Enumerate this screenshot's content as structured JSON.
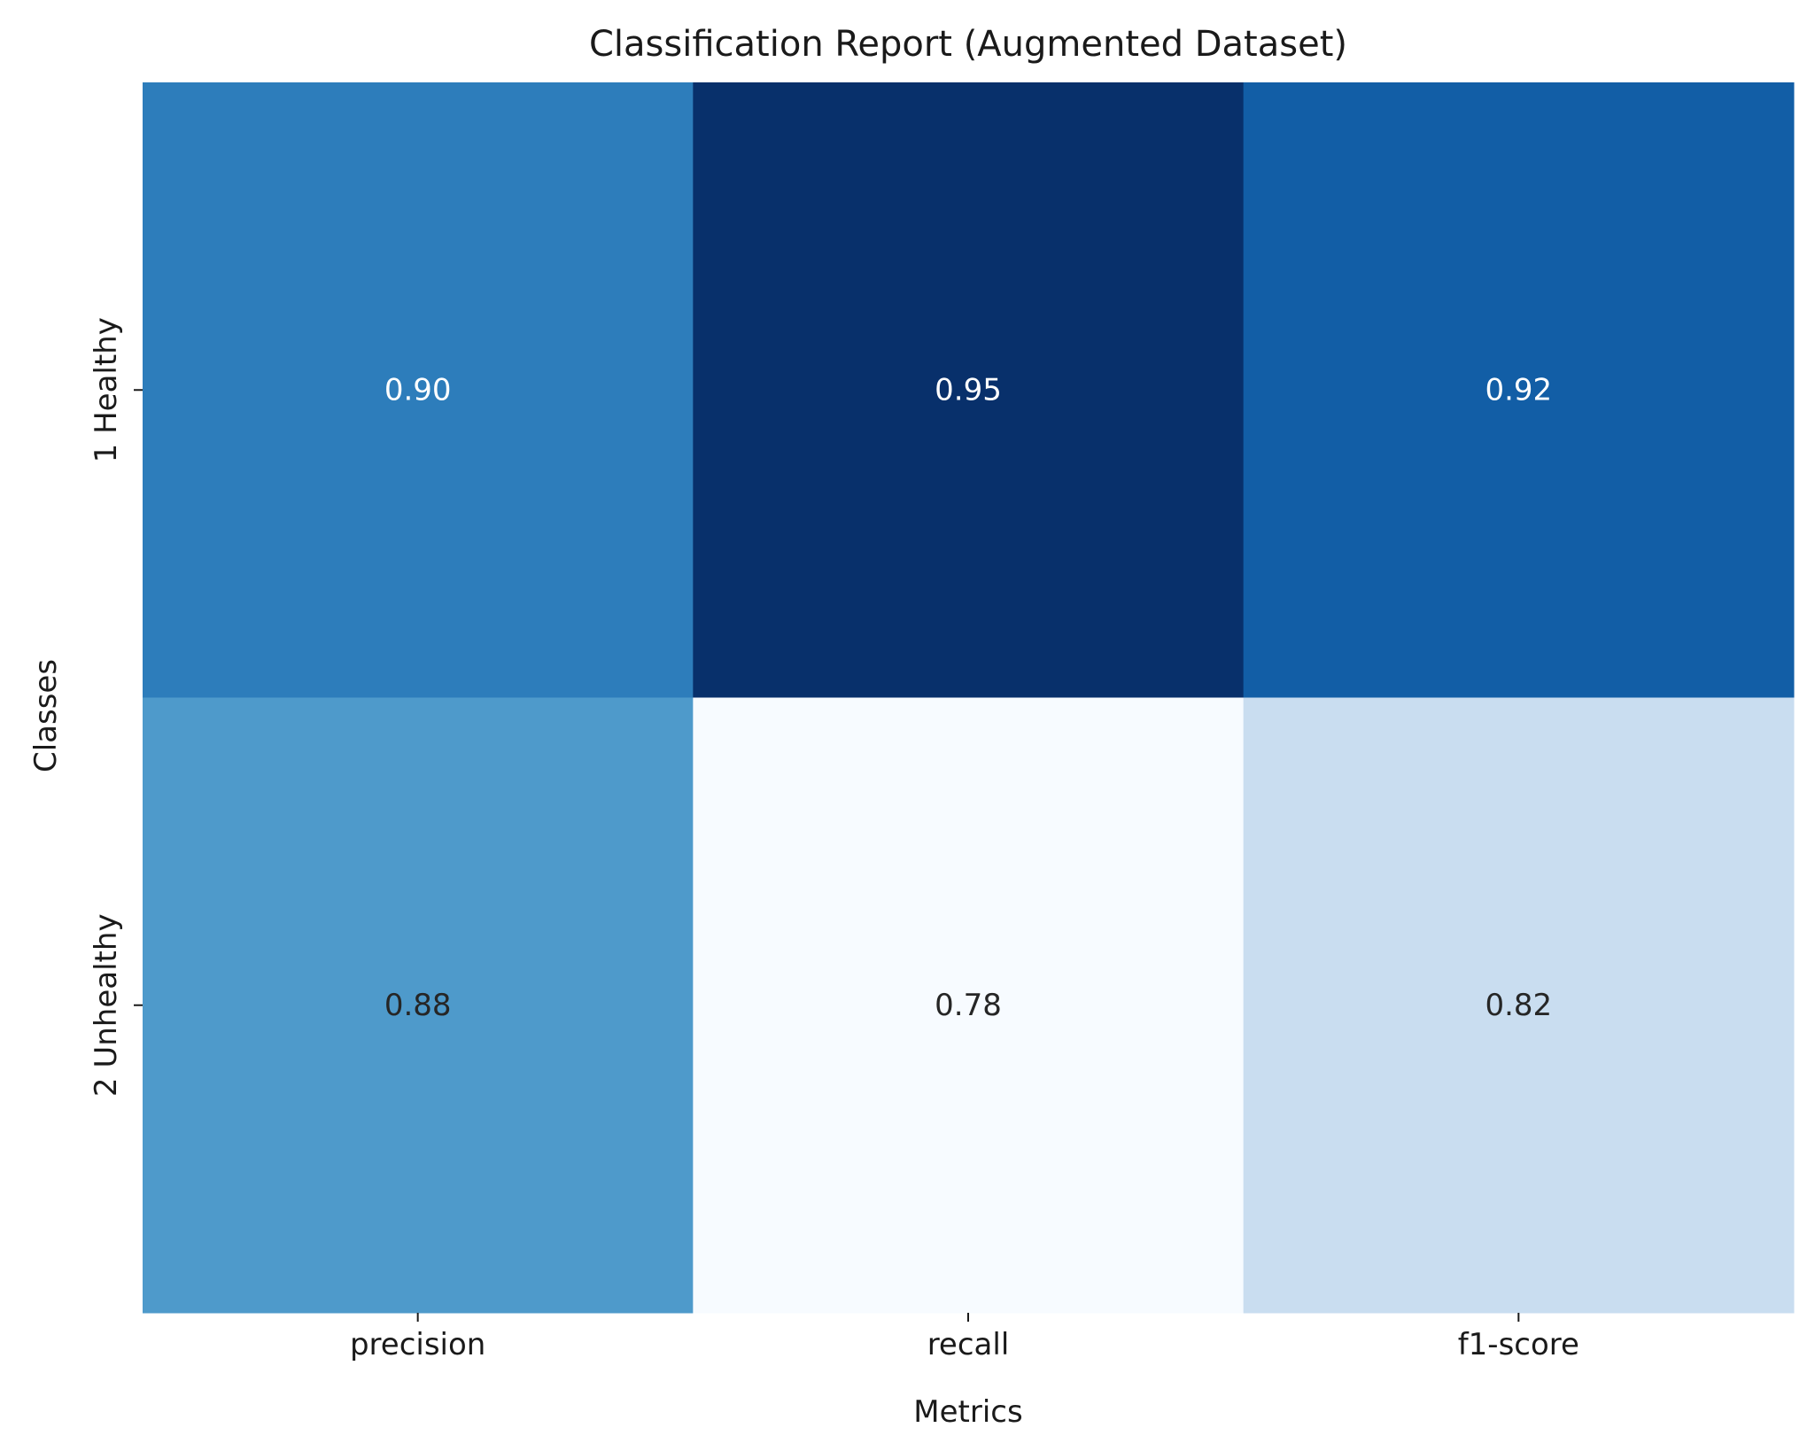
{
  "chart_data": {
    "type": "heatmap",
    "title": "Classification Report (Augmented Dataset)",
    "xlabel": "Metrics",
    "ylabel": "Classes",
    "x_categories": [
      "precision",
      "recall",
      "f1-score"
    ],
    "y_categories": [
      "1 Healthy",
      "2 Unhealthy"
    ],
    "values": [
      [
        0.9,
        0.95,
        0.92
      ],
      [
        0.88,
        0.78,
        0.82
      ]
    ],
    "value_labels": [
      [
        "0.90",
        "0.95",
        "0.92"
      ],
      [
        "0.88",
        "0.78",
        "0.82"
      ]
    ],
    "colormap": "Blues",
    "colormap_stops": [
      "#f7fbff",
      "#deebf7",
      "#c6dbef",
      "#9ecae1",
      "#6baed6",
      "#4292c6",
      "#2171b5",
      "#08519c",
      "#08306b"
    ],
    "colorbar": false,
    "grid": false,
    "legend": "none"
  }
}
